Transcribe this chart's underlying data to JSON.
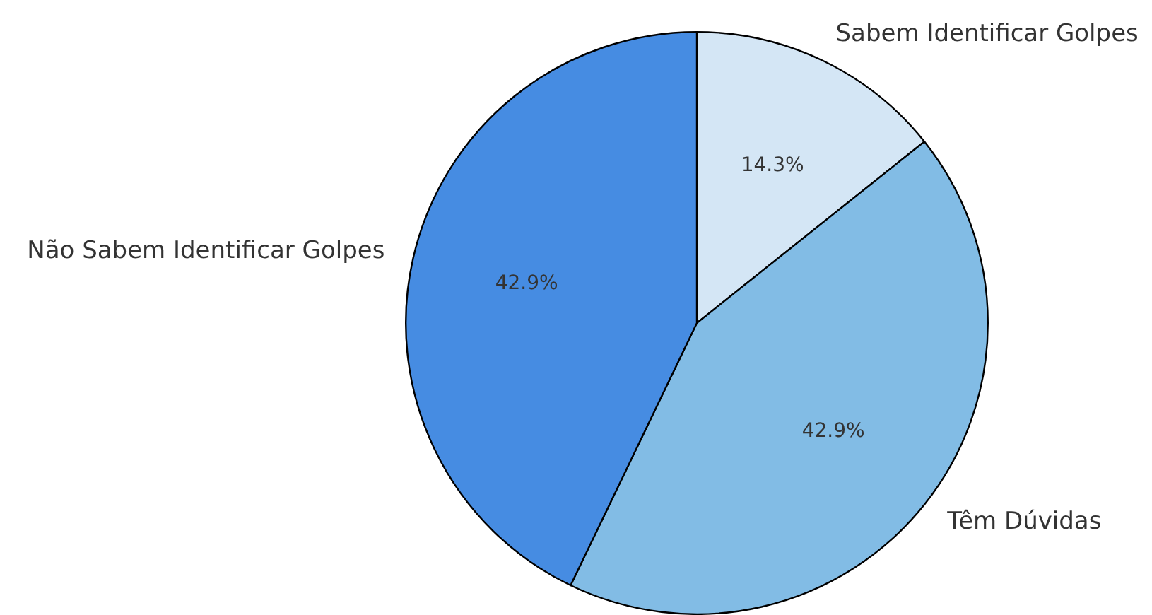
{
  "chart_data": {
    "type": "pie",
    "categories": [
      "Sabem Identificar Golpes",
      "Têm Dúvidas",
      "Não Sabem Identificar Golpes"
    ],
    "values": [
      14.3,
      42.9,
      42.9
    ],
    "colors": [
      "#d4e6f5",
      "#82bce5",
      "#468ce2"
    ],
    "value_labels": [
      "14.3%",
      "42.9%",
      "42.9%"
    ],
    "legend": false
  }
}
